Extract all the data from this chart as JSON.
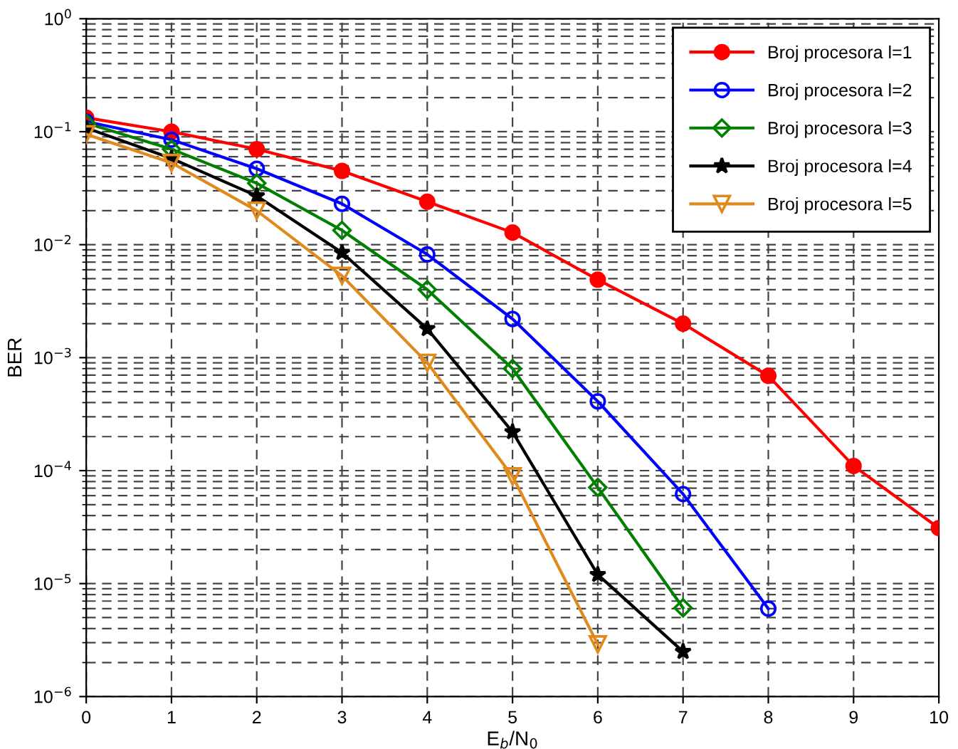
{
  "chart_data": {
    "type": "line",
    "xlabel": "E$_{b}$/N$_{0}$",
    "ylabel": "BER",
    "x": [
      0,
      1,
      2,
      3,
      4,
      5,
      6,
      7,
      8,
      9,
      10
    ],
    "series": [
      {
        "name": "Broj procesora l=1",
        "color": "#ff0000",
        "marker": "circle",
        "values": [
          0.133,
          0.1,
          0.07,
          0.045,
          0.024,
          0.0128,
          0.0049,
          0.002,
          0.00069,
          0.00011,
          3.1e-05
        ]
      },
      {
        "name": "Broj procesora l=2",
        "color": "#0000ff",
        "marker": "circle",
        "values": [
          0.123,
          0.085,
          0.047,
          0.023,
          0.0082,
          0.0022,
          0.00041,
          6.2e-05,
          6e-06,
          null,
          null
        ]
      },
      {
        "name": "Broj procesora l=3",
        "color": "#008000",
        "marker": "diamond",
        "values": [
          0.119,
          0.07,
          0.035,
          0.0134,
          0.004,
          0.0008,
          7.1e-05,
          6.1e-06,
          null,
          null,
          null
        ]
      },
      {
        "name": "Broj procesora l=4",
        "color": "#000000",
        "marker": "star",
        "values": [
          0.108,
          0.058,
          0.027,
          0.0085,
          0.0018,
          0.00022,
          1.2e-05,
          2.5e-06,
          null,
          null,
          null
        ]
      },
      {
        "name": "Broj procesora l=5",
        "color": "#e08a1e",
        "marker": "triangle",
        "values": [
          0.095,
          0.053,
          0.02,
          0.0053,
          0.0009,
          8.9e-05,
          2.9e-06,
          null,
          null,
          null,
          null
        ]
      }
    ],
    "log": "y",
    "xlim": [
      0,
      10
    ],
    "xticks": [
      0,
      1,
      2,
      3,
      4,
      5,
      6,
      7,
      8,
      9,
      10
    ],
    "ylim": [
      1e-06,
      1
    ],
    "yticks": [
      {
        "value": 1e-06,
        "label": "10$^{−6}$"
      },
      {
        "value": 1e-05,
        "label": "10$^{−5}$"
      },
      {
        "value": 0.0001,
        "label": "10$^{−4}$"
      },
      {
        "value": 0.001,
        "label": "10$^{−3}$"
      },
      {
        "value": 0.01,
        "label": "10$^{−2}$"
      },
      {
        "value": 0.1,
        "label": "10$^{−1}$"
      },
      {
        "value": 1,
        "label": "10$^{0}$"
      }
    ],
    "grid": true,
    "legend": "top right",
    "line_style": "solid"
  }
}
